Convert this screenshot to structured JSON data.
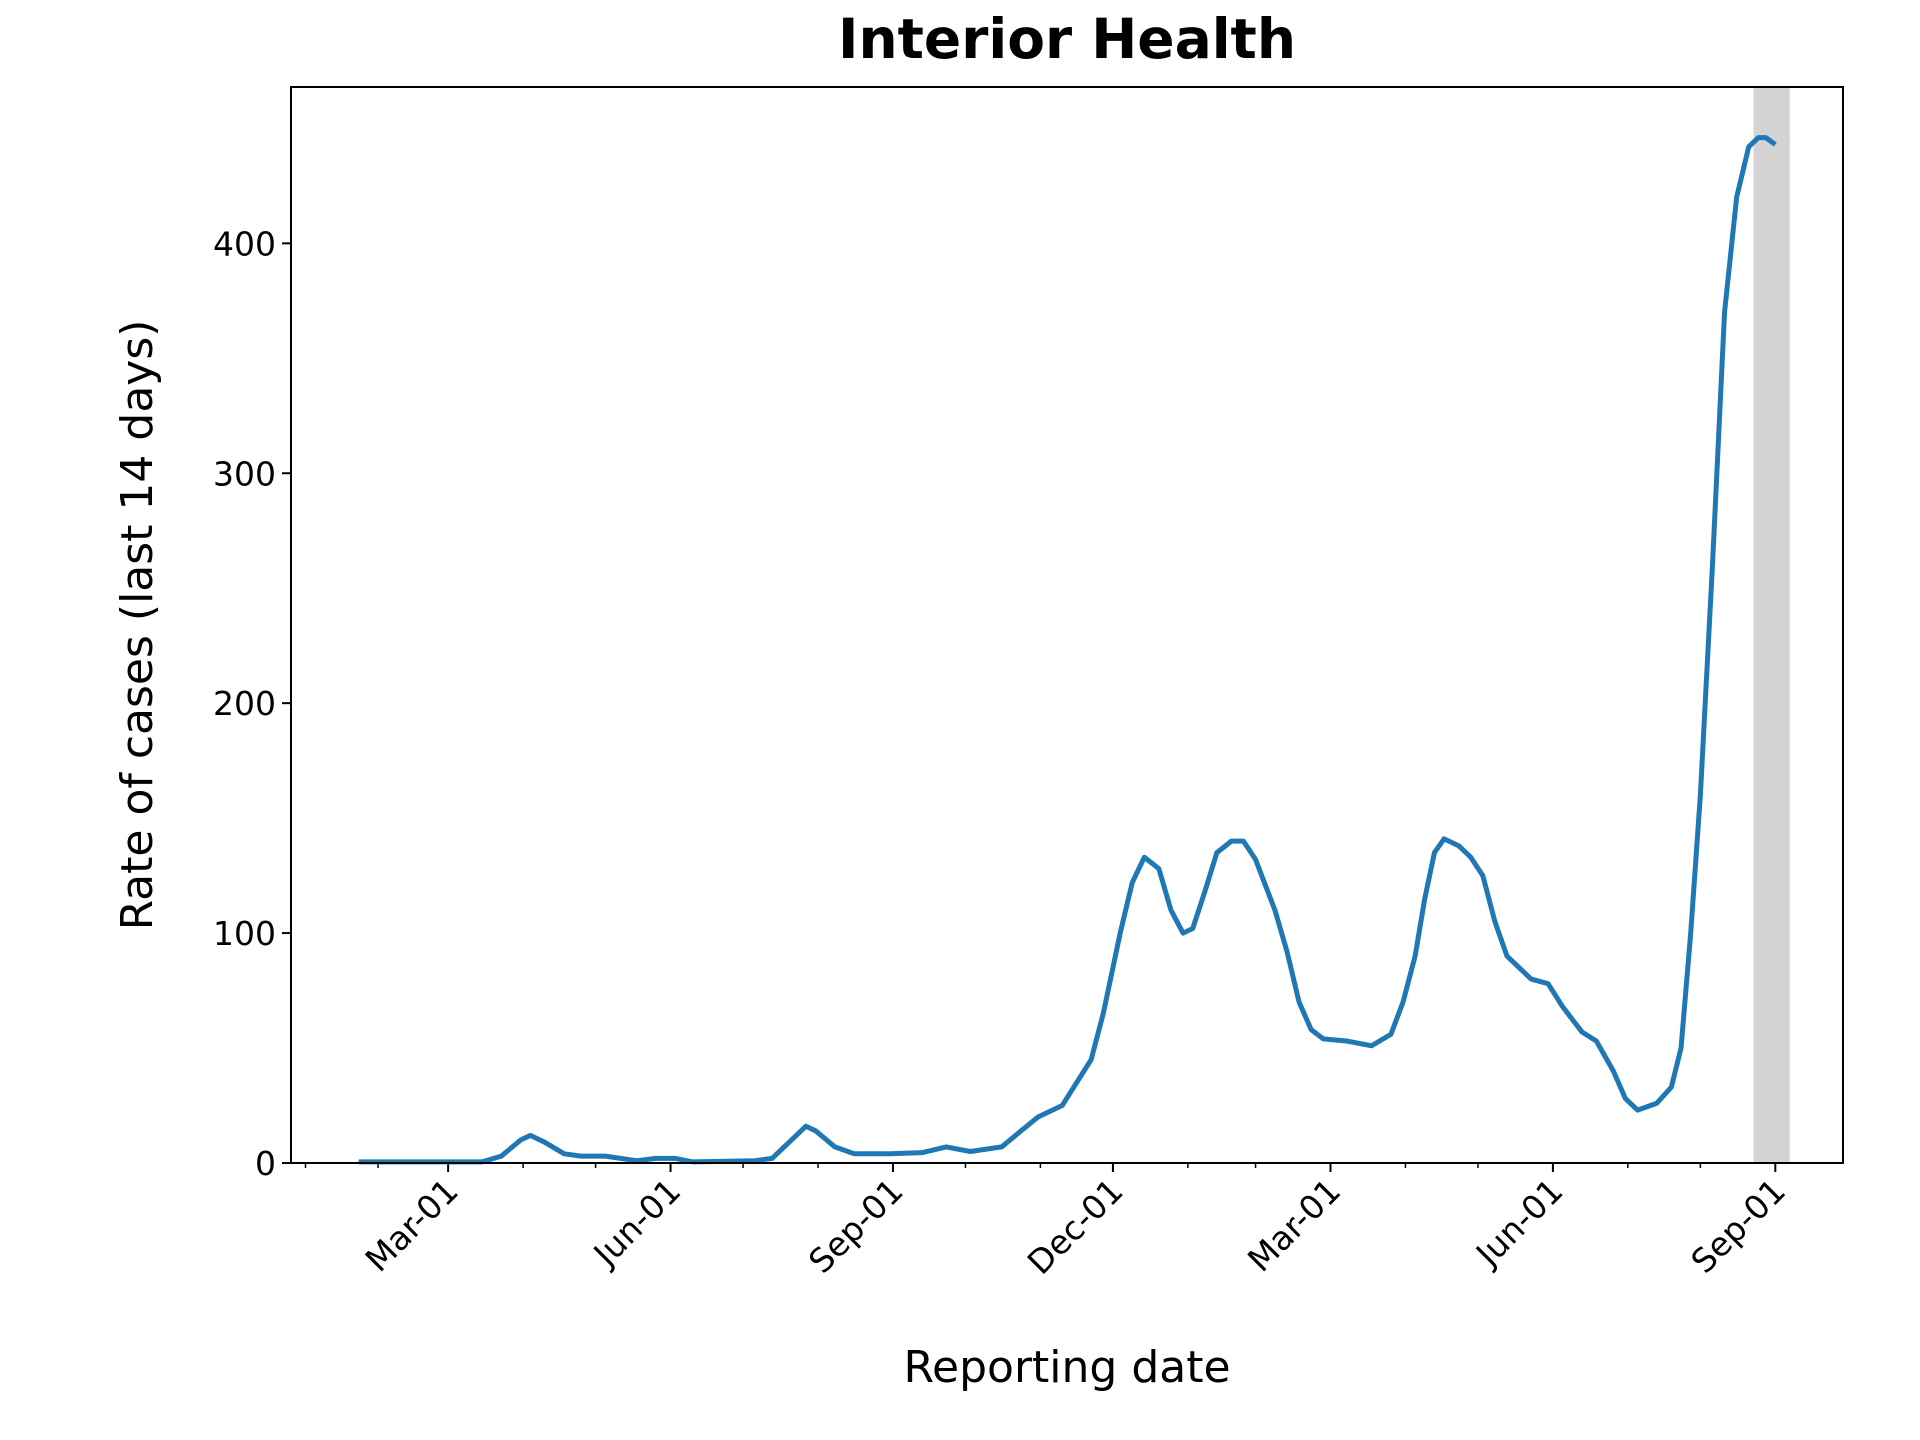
{
  "chart_data": {
    "type": "line",
    "title": "Interior Health",
    "xlabel": "Reporting date",
    "ylabel": "Rate of cases (last 14 days)",
    "series": [
      {
        "color": "#1f77b4",
        "x": [
          -37,
          14,
          22,
          30,
          34,
          40,
          48,
          55,
          65,
          78,
          86,
          94,
          101,
          127,
          134,
          142,
          148,
          152,
          160,
          168,
          183,
          196,
          206,
          216,
          229,
          237,
          244,
          254,
          260,
          266,
          271,
          278,
          283,
          288,
          294,
          299,
          304,
          308,
          313,
          318,
          324,
          329,
          334,
          342,
          347,
          352,
          357,
          362,
          372,
          382,
          390,
          395,
          400,
          404,
          408,
          412,
          418,
          423,
          428,
          433,
          438,
          443,
          448,
          455,
          461,
          469,
          475,
          482,
          487,
          492,
          500,
          506,
          510,
          514,
          518,
          523,
          528,
          533,
          538,
          542,
          545,
          549
        ],
        "values": [
          0.5,
          0.5,
          3,
          10,
          12,
          9,
          4,
          3,
          3,
          1,
          2,
          2,
          0.5,
          1,
          2,
          10,
          16,
          14,
          7,
          4,
          4,
          4.5,
          7,
          5,
          7,
          14,
          20,
          25,
          35,
          45,
          65,
          100,
          122,
          133,
          128,
          110,
          100,
          102,
          118,
          135,
          140,
          140,
          132,
          110,
          92,
          70,
          58,
          54,
          53,
          51,
          56,
          70,
          90,
          115,
          135,
          141,
          138,
          133,
          125,
          105,
          90,
          85,
          80,
          78,
          68,
          57,
          53,
          40,
          28,
          23,
          26,
          33,
          50,
          100,
          160,
          260,
          370,
          420,
          442,
          446,
          446,
          443
        ]
      }
    ],
    "xlim": [
      -65,
      577
    ],
    "xticks": [
      {
        "value": 0,
        "label": "Mar-01"
      },
      {
        "value": 92,
        "label": "Jun-01"
      },
      {
        "value": 184,
        "label": "Sep-01"
      },
      {
        "value": 275,
        "label": "Dec-01"
      },
      {
        "value": 365,
        "label": "Mar-01"
      },
      {
        "value": 457,
        "label": "Jun-01"
      },
      {
        "value": 549,
        "label": "Sep-01"
      }
    ],
    "xminorticks": [
      -59,
      -29,
      31,
      61,
      122,
      153,
      214,
      245,
      306,
      334,
      396,
      426,
      488,
      518
    ],
    "ylim": [
      0,
      468
    ],
    "yticks": [
      0,
      100,
      200,
      300,
      400
    ],
    "highlight_span": [
      540,
      555
    ],
    "highlight_color": "#d3d3d3"
  }
}
